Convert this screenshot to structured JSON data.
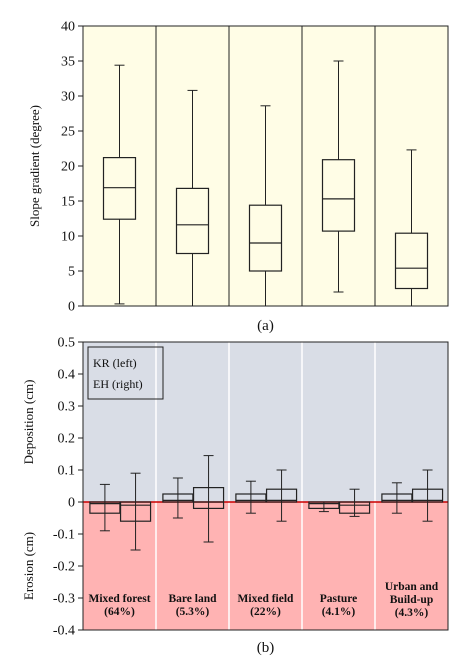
{
  "chart_data": [
    {
      "type": "box",
      "panel_label": "(a)",
      "ylabel": "Slope gradient (degree)",
      "ylim": [
        0,
        40
      ],
      "yticks": [
        0,
        5,
        10,
        15,
        20,
        25,
        30,
        35,
        40
      ],
      "yticks_labels": [
        "0",
        "5",
        "10",
        "15",
        "20",
        "25",
        "30",
        "35",
        "40"
      ],
      "background": "#fffde6",
      "groups": 5,
      "boxes": [
        {
          "group": 0,
          "whisker_low": 0.3,
          "q1": 12.4,
          "median": 16.9,
          "q3": 21.2,
          "whisker_high": 34.4
        },
        {
          "group": 1,
          "whisker_low": 0.0,
          "q1": 7.5,
          "median": 11.6,
          "q3": 16.8,
          "whisker_high": 30.8
        },
        {
          "group": 2,
          "whisker_low": 0.0,
          "q1": 5.0,
          "median": 9.0,
          "q3": 14.4,
          "whisker_high": 28.6
        },
        {
          "group": 3,
          "whisker_low": 2.0,
          "q1": 10.7,
          "median": 15.3,
          "q3": 20.9,
          "whisker_high": 35.0
        },
        {
          "group": 4,
          "whisker_low": 0.0,
          "q1": 2.5,
          "median": 5.4,
          "q3": 10.4,
          "whisker_high": 22.3
        }
      ]
    },
    {
      "type": "box",
      "panel_label": "(b)",
      "ylabel_top": "Deposition (cm)",
      "ylabel_bottom": "Erosion (cm)",
      "ylim": [
        -0.4,
        0.5
      ],
      "yticks": [
        -0.4,
        -0.3,
        -0.2,
        -0.1,
        0,
        0.1,
        0.2,
        0.3,
        0.4,
        0.5
      ],
      "yticks_labels": [
        "-0.4",
        "-0.3",
        "-0.2",
        "-0.1",
        "0",
        "0.1",
        "0.2",
        "0.3",
        "0.4",
        "0.5"
      ],
      "legend": [
        "KR (left)",
        "EH (right)"
      ],
      "legend_position": "top-left",
      "colors": {
        "deposition": "#d9dde6",
        "erosion": "#ffb3b3"
      },
      "categories": [
        {
          "name": "Mixed forest",
          "share": "(64%)"
        },
        {
          "name": "Bare land",
          "share": "(5.3%)"
        },
        {
          "name": "Mixed field",
          "share": "(22%)"
        },
        {
          "name": "Pasture",
          "share": "(4.1%)"
        },
        {
          "name": "Urban and",
          "name2": "Build-up",
          "share": "(4.3%)"
        }
      ],
      "boxes": [
        {
          "group": 0,
          "series": "KR",
          "whisker_low": -0.09,
          "q1": -0.035,
          "median": -0.005,
          "q3": 0.0,
          "whisker_high": 0.055
        },
        {
          "group": 0,
          "series": "EH",
          "whisker_low": -0.15,
          "q1": -0.06,
          "median": -0.01,
          "q3": 0.0,
          "whisker_high": 0.09
        },
        {
          "group": 1,
          "series": "KR",
          "whisker_low": -0.05,
          "q1": 0.0,
          "median": 0.005,
          "q3": 0.025,
          "whisker_high": 0.075
        },
        {
          "group": 1,
          "series": "EH",
          "whisker_low": -0.125,
          "q1": -0.02,
          "median": 0.0,
          "q3": 0.045,
          "whisker_high": 0.145
        },
        {
          "group": 2,
          "series": "KR",
          "whisker_low": -0.035,
          "q1": 0.0,
          "median": 0.005,
          "q3": 0.025,
          "whisker_high": 0.065
        },
        {
          "group": 2,
          "series": "EH",
          "whisker_low": -0.06,
          "q1": 0.0,
          "median": 0.005,
          "q3": 0.04,
          "whisker_high": 0.1
        },
        {
          "group": 3,
          "series": "KR",
          "whisker_low": -0.03,
          "q1": -0.02,
          "median": -0.005,
          "q3": 0.0,
          "whisker_high": 0.0
        },
        {
          "group": 3,
          "series": "EH",
          "whisker_low": -0.045,
          "q1": -0.035,
          "median": -0.01,
          "q3": 0.0,
          "whisker_high": 0.04
        },
        {
          "group": 4,
          "series": "KR",
          "whisker_low": -0.035,
          "q1": 0.0,
          "median": 0.005,
          "q3": 0.025,
          "whisker_high": 0.06
        },
        {
          "group": 4,
          "series": "EH",
          "whisker_low": -0.06,
          "q1": 0.0,
          "median": 0.005,
          "q3": 0.04,
          "whisker_high": 0.1
        }
      ]
    }
  ]
}
